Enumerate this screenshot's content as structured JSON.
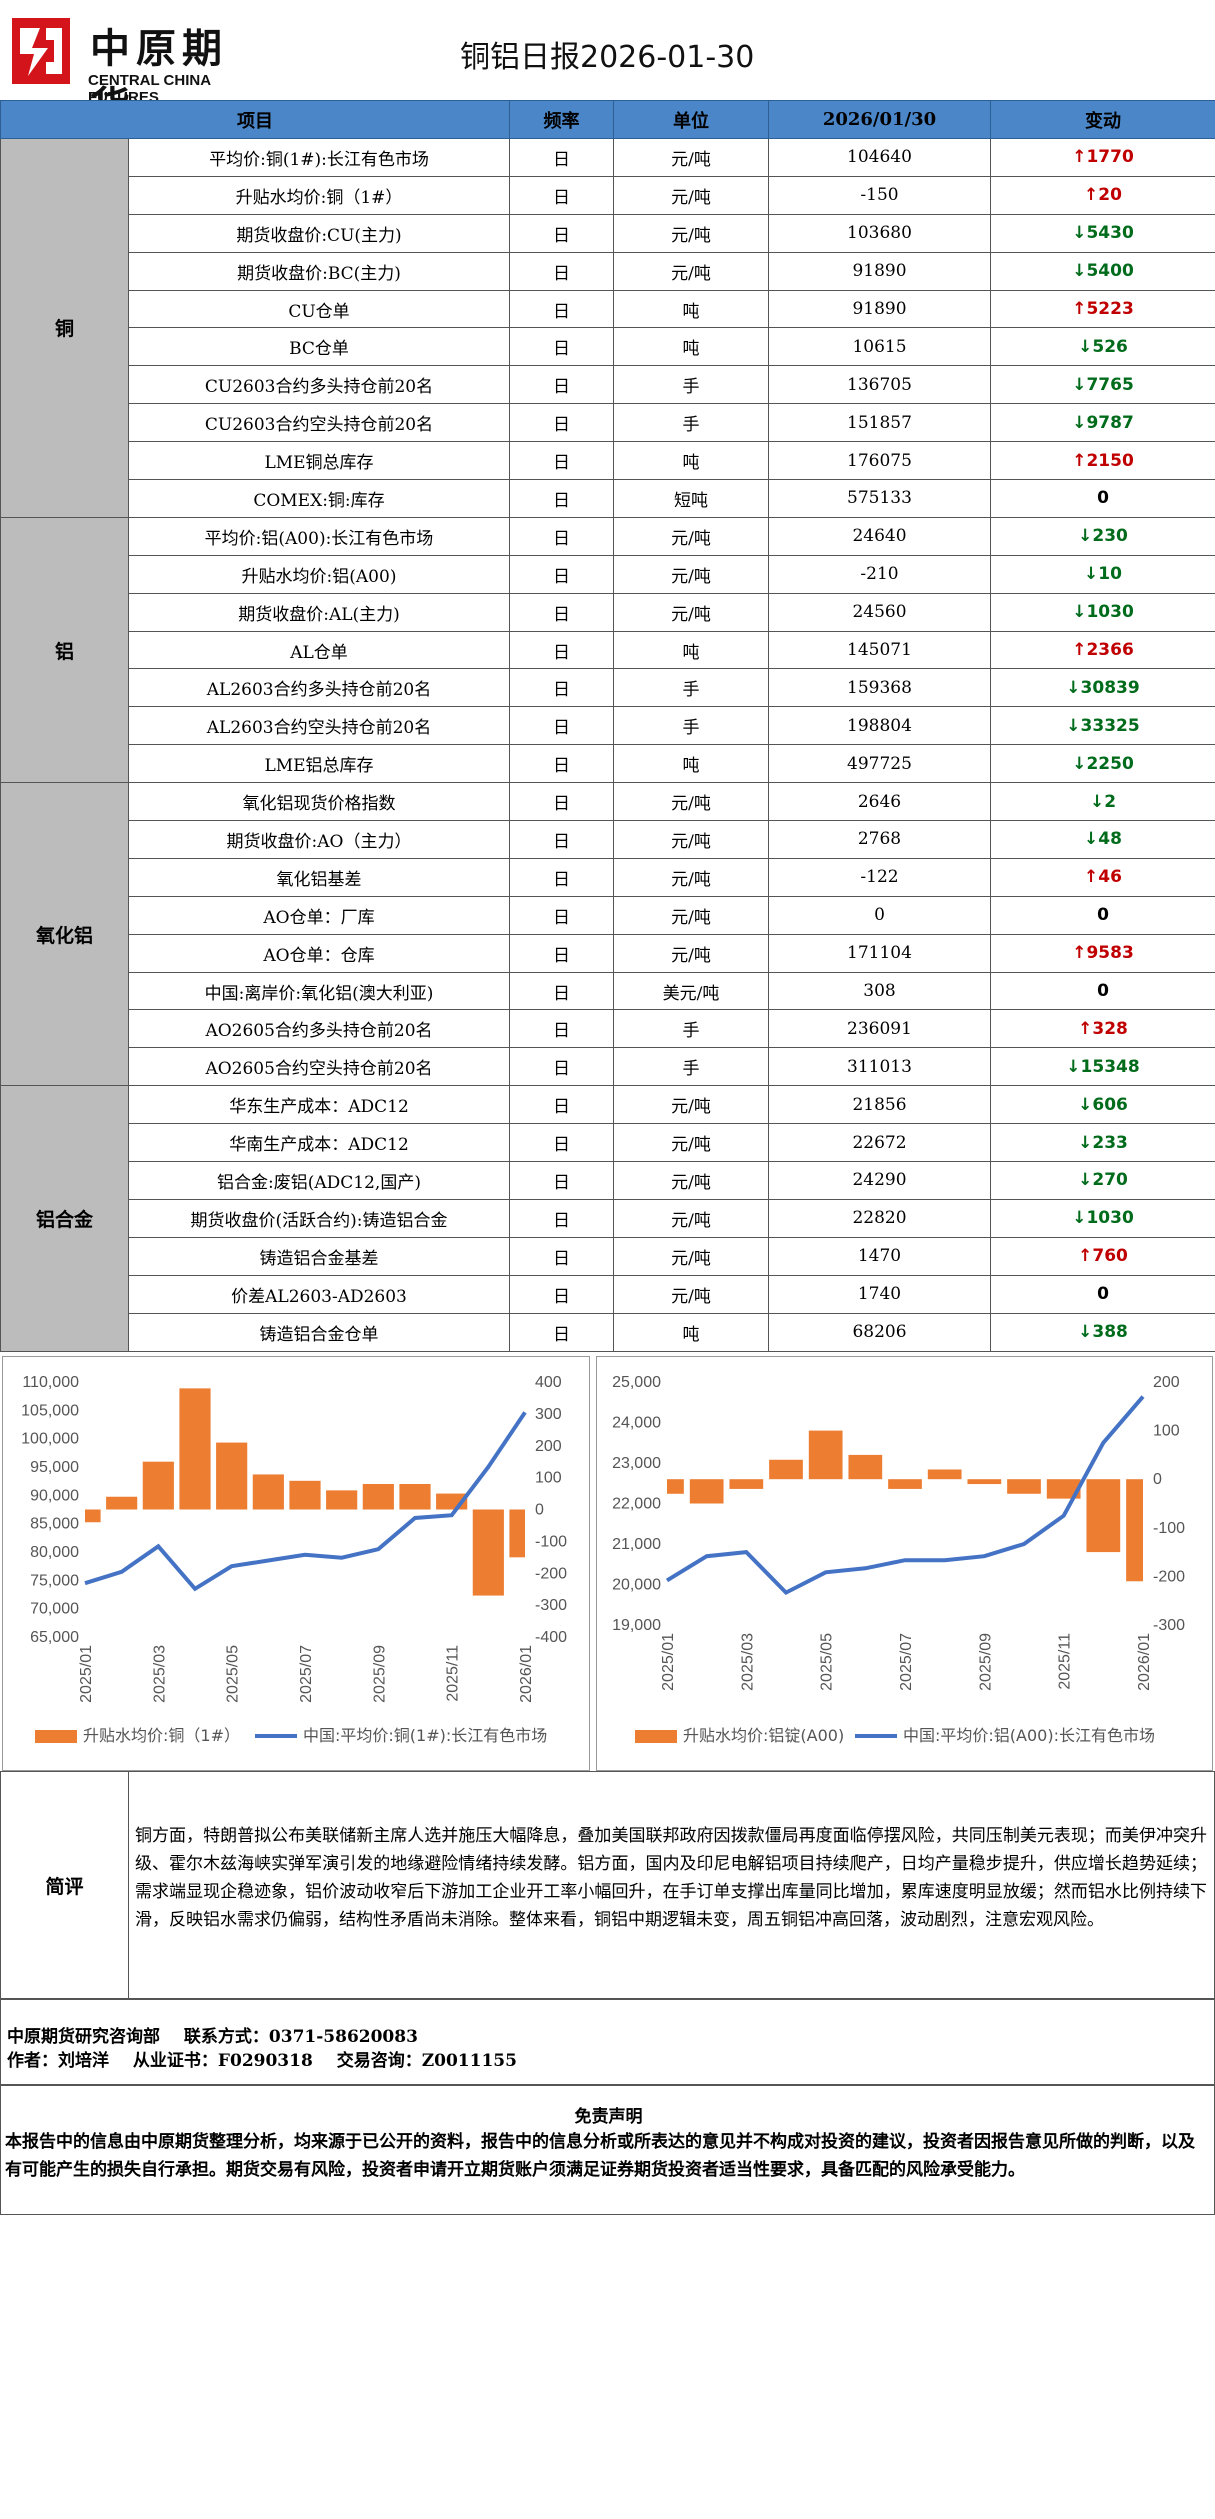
{
  "header": {
    "logo_cn": "中原期货",
    "logo_en": "CENTRAL CHINA FUTURES",
    "title": "铜铝日报2026-01-30"
  },
  "table": {
    "headers": [
      "项目",
      "频率",
      "单位",
      "2026/01/30",
      "变动"
    ],
    "groups": [
      {
        "name": "铜",
        "rows": [
          {
            "item": "平均价:铜(1#):长江有色市场",
            "freq": "日",
            "unit": "元/吨",
            "value": "104640",
            "change": "1770",
            "dir": "up"
          },
          {
            "item": "升贴水均价:铜（1#）",
            "freq": "日",
            "unit": "元/吨",
            "value": "-150",
            "change": "20",
            "dir": "up"
          },
          {
            "item": "期货收盘价:CU(主力)",
            "freq": "日",
            "unit": "元/吨",
            "value": "103680",
            "change": "5430",
            "dir": "down"
          },
          {
            "item": "期货收盘价:BC(主力)",
            "freq": "日",
            "unit": "元/吨",
            "value": "91890",
            "change": "5400",
            "dir": "down"
          },
          {
            "item": "CU仓单",
            "freq": "日",
            "unit": "吨",
            "value": "91890",
            "change": "5223",
            "dir": "up"
          },
          {
            "item": "BC仓单",
            "freq": "日",
            "unit": "吨",
            "value": "10615",
            "change": "526",
            "dir": "down"
          },
          {
            "item": "CU2603合约多头持仓前20名",
            "freq": "日",
            "unit": "手",
            "value": "136705",
            "change": "7765",
            "dir": "down"
          },
          {
            "item": "CU2603合约空头持仓前20名",
            "freq": "日",
            "unit": "手",
            "value": "151857",
            "change": "9787",
            "dir": "down"
          },
          {
            "item": "LME铜总库存",
            "freq": "日",
            "unit": "吨",
            "value": "176075",
            "change": "2150",
            "dir": "up"
          },
          {
            "item": "COMEX:铜:库存",
            "freq": "日",
            "unit": "短吨",
            "value": "575133",
            "change": "0",
            "dir": "flat"
          }
        ]
      },
      {
        "name": "铝",
        "rows": [
          {
            "item": "平均价:铝(A00):长江有色市场",
            "freq": "日",
            "unit": "元/吨",
            "value": "24640",
            "change": "230",
            "dir": "down"
          },
          {
            "item": "升贴水均价:铝(A00)",
            "freq": "日",
            "unit": "元/吨",
            "value": "-210",
            "change": "10",
            "dir": "down"
          },
          {
            "item": "期货收盘价:AL(主力)",
            "freq": "日",
            "unit": "元/吨",
            "value": "24560",
            "change": "1030",
            "dir": "down"
          },
          {
            "item": "AL仓单",
            "freq": "日",
            "unit": "吨",
            "value": "145071",
            "change": "2366",
            "dir": "up"
          },
          {
            "item": "AL2603合约多头持仓前20名",
            "freq": "日",
            "unit": "手",
            "value": "159368",
            "change": "30839",
            "dir": "down"
          },
          {
            "item": "AL2603合约空头持仓前20名",
            "freq": "日",
            "unit": "手",
            "value": "198804",
            "change": "33325",
            "dir": "down"
          },
          {
            "item": "LME铝总库存",
            "freq": "日",
            "unit": "吨",
            "value": "497725",
            "change": "2250",
            "dir": "down"
          }
        ]
      },
      {
        "name": "氧化铝",
        "rows": [
          {
            "item": "氧化铝现货价格指数",
            "freq": "日",
            "unit": "元/吨",
            "value": "2646",
            "change": "2",
            "dir": "down"
          },
          {
            "item": "期货收盘价:AO（主力）",
            "freq": "日",
            "unit": "元/吨",
            "value": "2768",
            "change": "48",
            "dir": "down"
          },
          {
            "item": "氧化铝基差",
            "freq": "日",
            "unit": "元/吨",
            "value": "-122",
            "change": "46",
            "dir": "up"
          },
          {
            "item": "AO仓单：厂库",
            "freq": "日",
            "unit": "元/吨",
            "value": "0",
            "change": "0",
            "dir": "flat"
          },
          {
            "item": "AO仓单：仓库",
            "freq": "日",
            "unit": "元/吨",
            "value": "171104",
            "change": "9583",
            "dir": "up"
          },
          {
            "item": "中国:离岸价:氧化铝(澳大利亚)",
            "freq": "日",
            "unit": "美元/吨",
            "value": "308",
            "change": "0",
            "dir": "flat"
          },
          {
            "item": "AO2605合约多头持仓前20名",
            "freq": "日",
            "unit": "手",
            "value": "236091",
            "change": "328",
            "dir": "up"
          },
          {
            "item": "AO2605合约空头持仓前20名",
            "freq": "日",
            "unit": "手",
            "value": "311013",
            "change": "15348",
            "dir": "down"
          }
        ]
      },
      {
        "name": "铝合金",
        "rows": [
          {
            "item": "华东生产成本：ADC12",
            "freq": "日",
            "unit": "元/吨",
            "value": "21856",
            "change": "606",
            "dir": "down"
          },
          {
            "item": "华南生产成本：ADC12",
            "freq": "日",
            "unit": "元/吨",
            "value": "22672",
            "change": "233",
            "dir": "down"
          },
          {
            "item": "铝合金:废铝(ADC12,国产)",
            "freq": "日",
            "unit": "元/吨",
            "value": "24290",
            "change": "270",
            "dir": "down"
          },
          {
            "item": "期货收盘价(活跃合约):铸造铝合金",
            "freq": "日",
            "unit": "元/吨",
            "value": "22820",
            "change": "1030",
            "dir": "down"
          },
          {
            "item": "铸造铝合金基差",
            "freq": "日",
            "unit": "元/吨",
            "value": "1470",
            "change": "760",
            "dir": "up"
          },
          {
            "item": "价差AL2603-AD2603",
            "freq": "日",
            "unit": "元/吨",
            "value": "1740",
            "change": "0",
            "dir": "flat"
          },
          {
            "item": "铸造铝合金仓单",
            "freq": "日",
            "unit": "吨",
            "value": "68206",
            "change": "388",
            "dir": "down"
          }
        ]
      }
    ]
  },
  "chart_data": [
    {
      "type": "line",
      "chart_subtype": "combo: bar (secondary axis) + line (primary axis)",
      "title": "",
      "x_ticks": [
        "2025/01",
        "2025/03",
        "2025/05",
        "2025/07",
        "2025/09",
        "2025/11",
        "2026/01"
      ],
      "y_left_ticks": [
        "110,000",
        "105,000",
        "100,000",
        "95,000",
        "90,000",
        "85,000",
        "80,000",
        "75,000",
        "70,000",
        "65,000"
      ],
      "y_right_ticks": [
        "400",
        "300",
        "200",
        "100",
        "0",
        "-100",
        "-200",
        "-300",
        "-400"
      ],
      "ylim_left": [
        65000,
        110000
      ],
      "ylim_right": [
        -400,
        400
      ],
      "legend_position": "bottom",
      "colors": {
        "bar": "#ed7d31",
        "line": "#4472c4"
      },
      "series": [
        {
          "name": "升贴水均价:铜（1#）",
          "kind": "bar",
          "axis": "right",
          "x": [
            "2025/01",
            "2025/02",
            "2025/03",
            "2025/04",
            "2025/05",
            "2025/06",
            "2025/07",
            "2025/08",
            "2025/09",
            "2025/10",
            "2025/11",
            "2025/12",
            "2026/01"
          ],
          "values": [
            -40,
            40,
            150,
            380,
            210,
            110,
            90,
            60,
            80,
            80,
            50,
            -270,
            -150
          ]
        },
        {
          "name": "中国:平均价:铜(1#):长江有色市场",
          "kind": "line",
          "axis": "left",
          "x": [
            "2025/01",
            "2025/02",
            "2025/03",
            "2025/04",
            "2025/05",
            "2025/06",
            "2025/07",
            "2025/08",
            "2025/09",
            "2025/10",
            "2025/11",
            "2025/12",
            "2026/01"
          ],
          "values": [
            74500,
            76500,
            81000,
            73500,
            77500,
            78500,
            79500,
            79000,
            80500,
            86000,
            86500,
            95000,
            104640
          ]
        }
      ]
    },
    {
      "type": "line",
      "chart_subtype": "combo: bar (secondary axis) + line (primary axis)",
      "title": "",
      "x_ticks": [
        "2025/01",
        "2025/03",
        "2025/05",
        "2025/07",
        "2025/09",
        "2025/11",
        "2026/01"
      ],
      "y_left_ticks": [
        "25,000",
        "24,000",
        "23,000",
        "22,000",
        "21,000",
        "20,000",
        "19,000"
      ],
      "y_right_ticks": [
        "200",
        "100",
        "0",
        "-100",
        "-200",
        "-300"
      ],
      "ylim_left": [
        19000,
        25000
      ],
      "ylim_right": [
        -300,
        200
      ],
      "legend_position": "bottom",
      "colors": {
        "bar": "#ed7d31",
        "line": "#4472c4"
      },
      "series": [
        {
          "name": "升贴水均价:铝锭(A00)",
          "kind": "bar",
          "axis": "right",
          "x": [
            "2025/01",
            "2025/02",
            "2025/03",
            "2025/04",
            "2025/05",
            "2025/06",
            "2025/07",
            "2025/08",
            "2025/09",
            "2025/10",
            "2025/11",
            "2025/12",
            "2026/01"
          ],
          "values": [
            -30,
            -50,
            -20,
            40,
            100,
            50,
            -20,
            20,
            -10,
            -30,
            -40,
            -150,
            -210
          ]
        },
        {
          "name": "中国:平均价:铝(A00):长江有色市场",
          "kind": "line",
          "axis": "left",
          "x": [
            "2025/01",
            "2025/02",
            "2025/03",
            "2025/04",
            "2025/05",
            "2025/06",
            "2025/07",
            "2025/08",
            "2025/09",
            "2025/10",
            "2025/11",
            "2025/12",
            "2026/01"
          ],
          "values": [
            20100,
            20700,
            20800,
            19800,
            20300,
            20400,
            20600,
            20600,
            20700,
            21000,
            21700,
            23500,
            24640
          ]
        }
      ]
    }
  ],
  "comment": {
    "label": "简评",
    "text": "铜方面，特朗普拟公布美联储新主席人选并施压大幅降息，叠加美国联邦政府因拨款僵局再度面临停摆风险，共同压制美元表现；而美伊冲突升级、霍尔木兹海峡实弹军演引发的地缘避险情绪持续发酵。铝方面，国内及印尼电解铝项目持续爬产，日均产量稳步提升，供应增长趋势延续；需求端显现企稳迹象，铝价波动收窄后下游加工企业开工率小幅回升，在手订单支撑出库量同比增加，累库速度明显放缓；然而铝水比例持续下滑，反映铝水需求仍偏弱，结构性矛盾尚未消除。整体来看，铜铝中期逻辑未变，周五铜铝冲高回落，波动剧烈，注意宏观风险。"
  },
  "contact": {
    "dept": "中原期货研究咨询部",
    "phone": "联系方式：0371-58620083",
    "author": "作者：刘培洋",
    "license": "从业证书：F0290318",
    "consult": "交易咨询：Z0011155"
  },
  "disclaimer": {
    "title": "免责声明",
    "text": "本报告中的信息由中原期货整理分析，均来源于已公开的资料，报告中的信息分析或所表达的意见并不构成对投资的建议，投资者因报告意见所做的判断，以及有可能产生的损失自行承担。期货交易有风险，投资者申请开立期货账户须满足证券期货投资者适当性要求，具备匹配的风险承受能力。"
  }
}
